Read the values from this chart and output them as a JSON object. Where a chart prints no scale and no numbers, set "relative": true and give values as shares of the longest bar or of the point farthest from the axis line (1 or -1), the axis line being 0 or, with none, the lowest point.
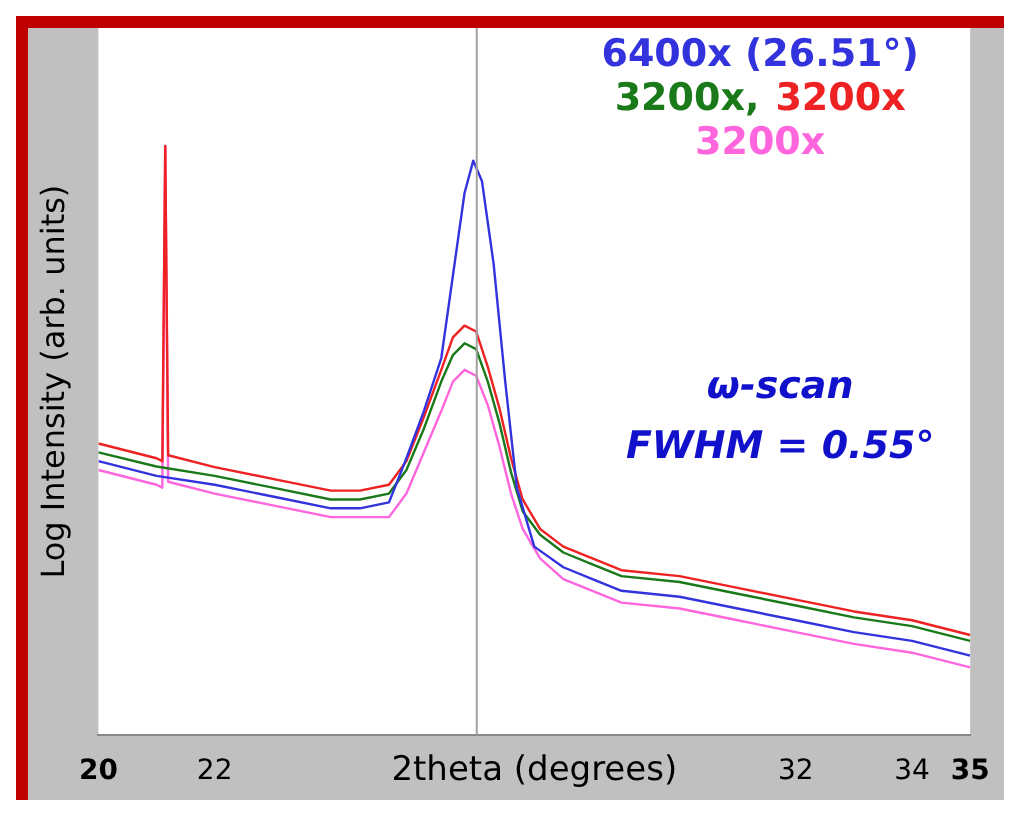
{
  "chart_data": {
    "type": "line",
    "relative": true,
    "xlabel": "2theta (degrees)",
    "ylabel": "Log Intensity (arb. units)",
    "xlim": [
      20,
      35
    ],
    "xticks": [
      20,
      22,
      32,
      34,
      35
    ],
    "legend": "top right",
    "marker": "none",
    "line_style": "solid",
    "grid": false,
    "ref_lines": [
      {
        "axis": "x",
        "value": 26.51,
        "color": "#a0a0a0"
      }
    ],
    "annotations": [
      "ω-scan",
      "FWHM = 0.55°"
    ],
    "series": [
      {
        "name": "6400x (26.51°)",
        "color": "#3333dd",
        "x": [
          20,
          21,
          22,
          23,
          24,
          24.5,
          25,
          25.3,
          25.6,
          25.9,
          26.1,
          26.3,
          26.45,
          26.6,
          26.8,
          27,
          27.2,
          27.5,
          28,
          28.5,
          29,
          30,
          31,
          32,
          33,
          34,
          35
        ],
        "values": [
          0.465,
          0.44,
          0.425,
          0.405,
          0.385,
          0.385,
          0.395,
          0.47,
          0.55,
          0.64,
          0.78,
          0.92,
          0.975,
          0.94,
          0.8,
          0.6,
          0.42,
          0.32,
          0.285,
          0.265,
          0.245,
          0.235,
          0.215,
          0.195,
          0.175,
          0.16,
          0.135
        ]
      },
      {
        "name": "3200x,",
        "color": "#1a7a1a",
        "x": [
          20,
          21,
          22,
          23,
          24,
          24.5,
          25,
          25.3,
          25.6,
          25.9,
          26.1,
          26.3,
          26.5,
          26.7,
          26.9,
          27.1,
          27.3,
          27.6,
          28,
          28.5,
          29,
          30,
          31,
          32,
          33,
          34,
          35
        ],
        "values": [
          0.48,
          0.456,
          0.44,
          0.42,
          0.4,
          0.4,
          0.41,
          0.45,
          0.52,
          0.6,
          0.645,
          0.665,
          0.655,
          0.6,
          0.53,
          0.446,
          0.38,
          0.34,
          0.31,
          0.29,
          0.27,
          0.26,
          0.24,
          0.22,
          0.2,
          0.185,
          0.16
        ]
      },
      {
        "name": "3200x",
        "color": "#ee2222",
        "x": [
          20,
          21,
          21.1,
          21.15,
          21.2,
          22,
          23,
          24,
          24.5,
          25,
          25.3,
          25.6,
          25.9,
          26.1,
          26.3,
          26.5,
          26.7,
          26.9,
          27.1,
          27.3,
          27.6,
          28,
          28.5,
          29,
          30,
          31,
          32,
          33,
          34,
          35
        ],
        "values": [
          0.495,
          0.47,
          0.465,
          1,
          0.475,
          0.455,
          0.435,
          0.415,
          0.415,
          0.425,
          0.465,
          0.54,
          0.62,
          0.675,
          0.695,
          0.685,
          0.625,
          0.555,
          0.47,
          0.4,
          0.35,
          0.32,
          0.3,
          0.28,
          0.27,
          0.25,
          0.23,
          0.21,
          0.195,
          0.17
        ]
      },
      {
        "name": "3200x",
        "color": "#ff66dd",
        "x": [
          20,
          21,
          21.1,
          21.15,
          21.2,
          22,
          23,
          24,
          24.5,
          25,
          25.3,
          25.6,
          25.9,
          26.1,
          26.3,
          26.5,
          26.7,
          26.9,
          27.1,
          27.3,
          27.6,
          28,
          28.5,
          29,
          30,
          31,
          32,
          33,
          34,
          35
        ],
        "values": [
          0.45,
          0.425,
          0.42,
          1,
          0.43,
          0.41,
          0.39,
          0.37,
          0.37,
          0.37,
          0.41,
          0.48,
          0.55,
          0.6,
          0.62,
          0.61,
          0.56,
          0.49,
          0.41,
          0.35,
          0.3,
          0.265,
          0.245,
          0.225,
          0.215,
          0.195,
          0.175,
          0.155,
          0.14,
          0.115
        ]
      }
    ]
  }
}
